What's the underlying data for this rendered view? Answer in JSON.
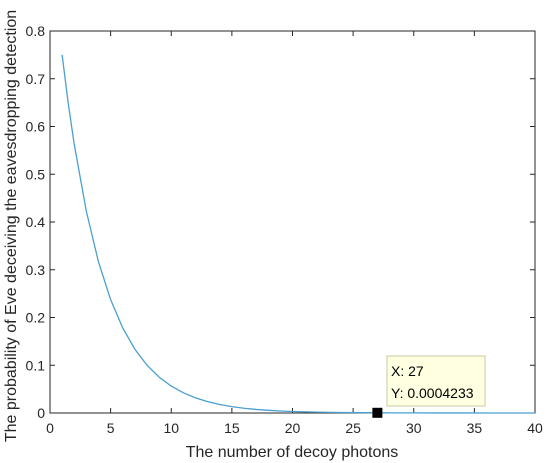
{
  "chart_data": {
    "type": "line",
    "title": "",
    "xlabel": "The number of decoy photons",
    "ylabel": "The probability of Eve deceiving the eavesdropping detection",
    "xlim": [
      0,
      40
    ],
    "ylim": [
      0,
      0.8
    ],
    "x_ticks": [
      "0",
      "5",
      "10",
      "15",
      "20",
      "25",
      "30",
      "35",
      "40"
    ],
    "y_ticks": [
      "0",
      "0.1",
      "0.2",
      "0.3",
      "0.4",
      "0.5",
      "0.6",
      "0.7",
      "0.8"
    ],
    "grid": false,
    "series": [
      {
        "color": "#4a9fd0",
        "points": [
          [
            1,
            0.75
          ],
          [
            1.5,
            0.649
          ],
          [
            2,
            0.5625
          ],
          [
            3,
            0.4219
          ],
          [
            4,
            0.3164
          ],
          [
            5,
            0.2373
          ],
          [
            6,
            0.178
          ],
          [
            7,
            0.1335
          ],
          [
            8,
            0.1001
          ],
          [
            9,
            0.0751
          ],
          [
            10,
            0.0563
          ],
          [
            11,
            0.0422
          ],
          [
            12,
            0.0317
          ],
          [
            13,
            0.0238
          ],
          [
            14,
            0.0178
          ],
          [
            15,
            0.0134
          ],
          [
            16,
            0.01
          ],
          [
            17,
            0.0075
          ],
          [
            18,
            0.0056
          ],
          [
            19,
            0.0042
          ],
          [
            20,
            0.0032
          ],
          [
            22,
            0.0018
          ],
          [
            24,
            0.001
          ],
          [
            26,
            0.0006
          ],
          [
            27,
            0.0004233
          ],
          [
            28,
            0.0003
          ],
          [
            30,
            0.0002
          ],
          [
            32,
            0.0001
          ],
          [
            34,
            0.0001
          ],
          [
            36,
            0.0
          ],
          [
            38,
            0.0
          ],
          [
            40,
            0.0
          ]
        ]
      }
    ],
    "datatip": {
      "x": 27,
      "y": 0.0004233,
      "x_text": "X: 27",
      "y_text": "Y: 0.0004233"
    }
  }
}
